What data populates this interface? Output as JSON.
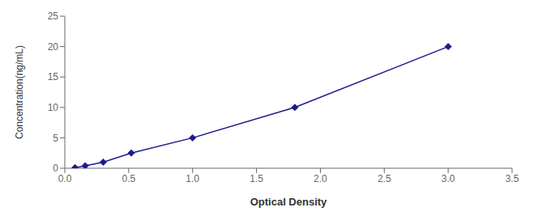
{
  "chart_data": {
    "type": "line",
    "x": [
      0.08,
      0.16,
      0.3,
      0.52,
      1.0,
      1.8,
      3.0
    ],
    "values": [
      0.1,
      0.4,
      1.0,
      2.5,
      5.0,
      10.0,
      20.0
    ],
    "color": "#1c1c8c",
    "marker": "diamond",
    "line_style": "solid",
    "xlabel": "Optical Density",
    "ylabel": "Concentration(ng/mL)",
    "xlim": [
      0,
      3.5
    ],
    "ylim": [
      0,
      25
    ],
    "xticks": [
      {
        "value": 0,
        "label": "0.0"
      },
      0.5,
      {
        "value": 1,
        "label": "1.0"
      },
      1.5,
      {
        "value": 2,
        "label": "2.0"
      },
      2.5,
      {
        "value": 3,
        "label": "3.0"
      },
      3.5
    ],
    "yticks": [
      0,
      5,
      10,
      15,
      20,
      25
    ]
  }
}
